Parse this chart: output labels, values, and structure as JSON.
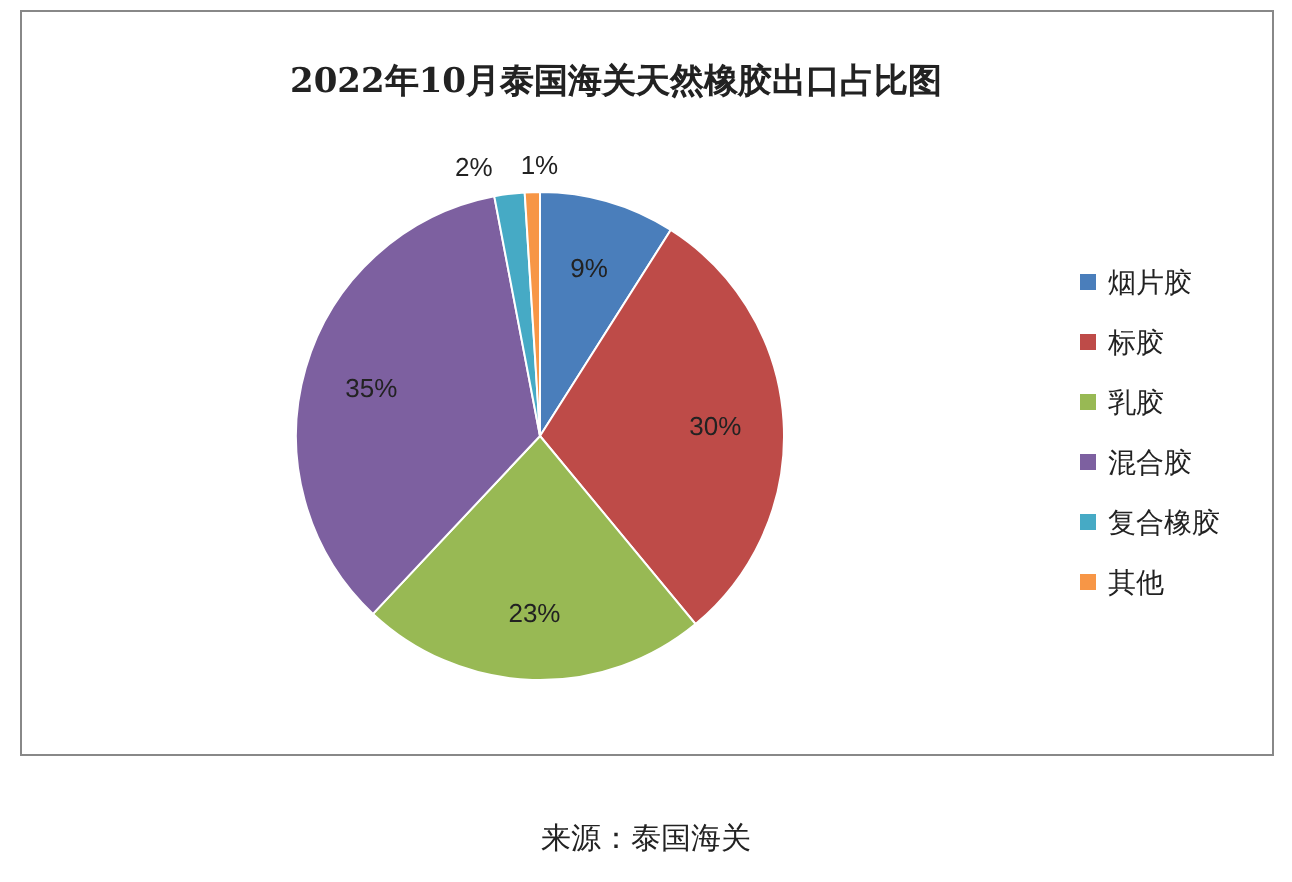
{
  "chart_data": {
    "type": "pie",
    "title": "2022年10月泰国海关天然橡胶出口占比图",
    "categories": [
      "烟片胶",
      "标胶",
      "乳胶",
      "混合胶",
      "复合橡胶",
      "其他"
    ],
    "values": [
      9,
      30,
      23,
      35,
      2,
      1
    ],
    "colors": [
      "#4a7ebb",
      "#be4b48",
      "#98b954",
      "#7d60a0",
      "#46aac5",
      "#f79646"
    ],
    "value_labels": [
      "9%",
      "30%",
      "23%",
      "35%",
      "2%",
      "1%"
    ],
    "legend": "right",
    "annotations": [
      "来源：泰国海关"
    ]
  }
}
